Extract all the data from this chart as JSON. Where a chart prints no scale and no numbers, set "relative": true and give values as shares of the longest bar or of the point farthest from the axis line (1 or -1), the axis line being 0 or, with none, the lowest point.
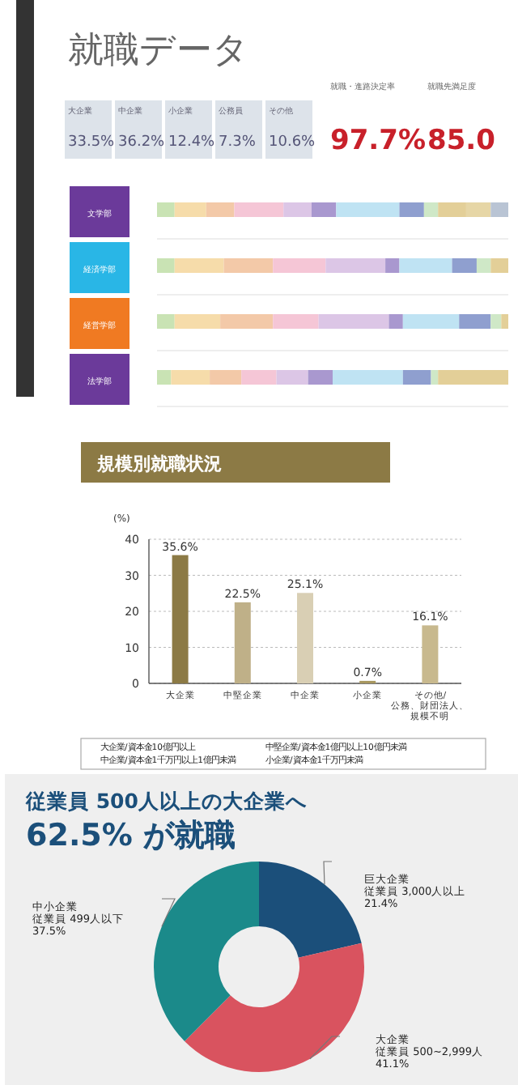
{
  "chart_data": [
    {
      "type": "other",
      "title": "就職データ",
      "categories": [
        "大企業",
        "中企業",
        "小企業",
        "公務員",
        "その他"
      ],
      "value_labels": [
        "33.5%",
        "36.2%",
        "12.4%",
        "7.3%",
        "10.6%"
      ],
      "annotations": [
        "就職・進路決定率",
        "97.7%",
        "就職先満足度",
        "85.0"
      ]
    },
    {
      "type": "bar",
      "orientation": "horizontal",
      "stacked": true,
      "relative": true,
      "categories": [
        "文学部",
        "経済学部",
        "経営学部",
        "法学部"
      ],
      "series": [
        {
          "color": "#c9e3b4",
          "values": [
            0.05,
            0.05,
            0.05,
            0.04
          ]
        },
        {
          "color": "#f6dcaa",
          "values": [
            0.09,
            0.14,
            0.13,
            0.11
          ]
        },
        {
          "color": "#f3c9a8",
          "values": [
            0.08,
            0.14,
            0.15,
            0.09
          ]
        },
        {
          "color": "#f5c6d6",
          "values": [
            0.14,
            0.15,
            0.13,
            0.1
          ]
        },
        {
          "color": "#dcc6e6",
          "values": [
            0.08,
            0.17,
            0.2,
            0.09
          ]
        },
        {
          "color": "#a998cf",
          "values": [
            0.07,
            0.04,
            0.04,
            0.07
          ]
        },
        {
          "color": "#bfe3f3",
          "values": [
            0.18,
            0.15,
            0.16,
            0.2
          ]
        },
        {
          "color": "#8f9fcf",
          "values": [
            0.07,
            0.07,
            0.09,
            0.08
          ]
        },
        {
          "color": "#cfe8c7",
          "values": [
            0.04,
            0.04,
            0.03,
            0.02
          ]
        },
        {
          "color": "#e3cf98",
          "values": [
            0.08,
            0.05,
            0.02,
            0.2
          ]
        },
        {
          "color": "#e6d6a6",
          "values": [
            0.07,
            null,
            null,
            null
          ]
        },
        {
          "color": "#b9c4d4",
          "values": [
            0.05,
            null,
            null,
            null
          ]
        }
      ],
      "colors": [
        "#6b3a9a",
        "#29b6e6",
        "#f07a22",
        "#6b3a9a"
      ]
    },
    {
      "type": "bar",
      "title": "規模別就職状況",
      "ylabel": "(%)",
      "categories": [
        "大企業",
        "中堅企業",
        "中企業",
        "小企業",
        "その他/公務、財団法人、規模不明"
      ],
      "values": [
        35.6,
        22.5,
        25.1,
        0.7,
        16.1
      ],
      "value_labels": [
        "35.6%",
        "22.5%",
        "25.1%",
        "0.7%",
        "16.1%"
      ],
      "colors": [
        "#8c7a45",
        "#bfb088",
        "#d9cfb4",
        "#a8975f",
        "#c8b98e"
      ],
      "ylim": [
        0,
        40
      ],
      "yticks": [
        0,
        10,
        20,
        30,
        40
      ],
      "grid": "y",
      "annotations": [
        "大企業/資本金10億円以上",
        "中堅企業/資本金1億円以上10億円未満",
        "中企業/資本金1千万円以上1億円未満",
        "小企業/資本金1千万円未満"
      ]
    },
    {
      "type": "donut",
      "title": "従業員 500人以上の大企業へ",
      "subtitle": "62.5% が就職",
      "categories": [
        "巨大企業",
        "大企業",
        "中小企業"
      ],
      "annotations": [
        "従業員 3,000人以上",
        "従業員 500~2,999人",
        "従業員 499人以下"
      ],
      "values": [
        21.4,
        41.1,
        37.5
      ],
      "colors": [
        "#1b4f7a",
        "#d9535f",
        "#1b8a8a"
      ],
      "value_labels": [
        "21.4%",
        "41.1%",
        "37.5%"
      ]
    }
  ]
}
